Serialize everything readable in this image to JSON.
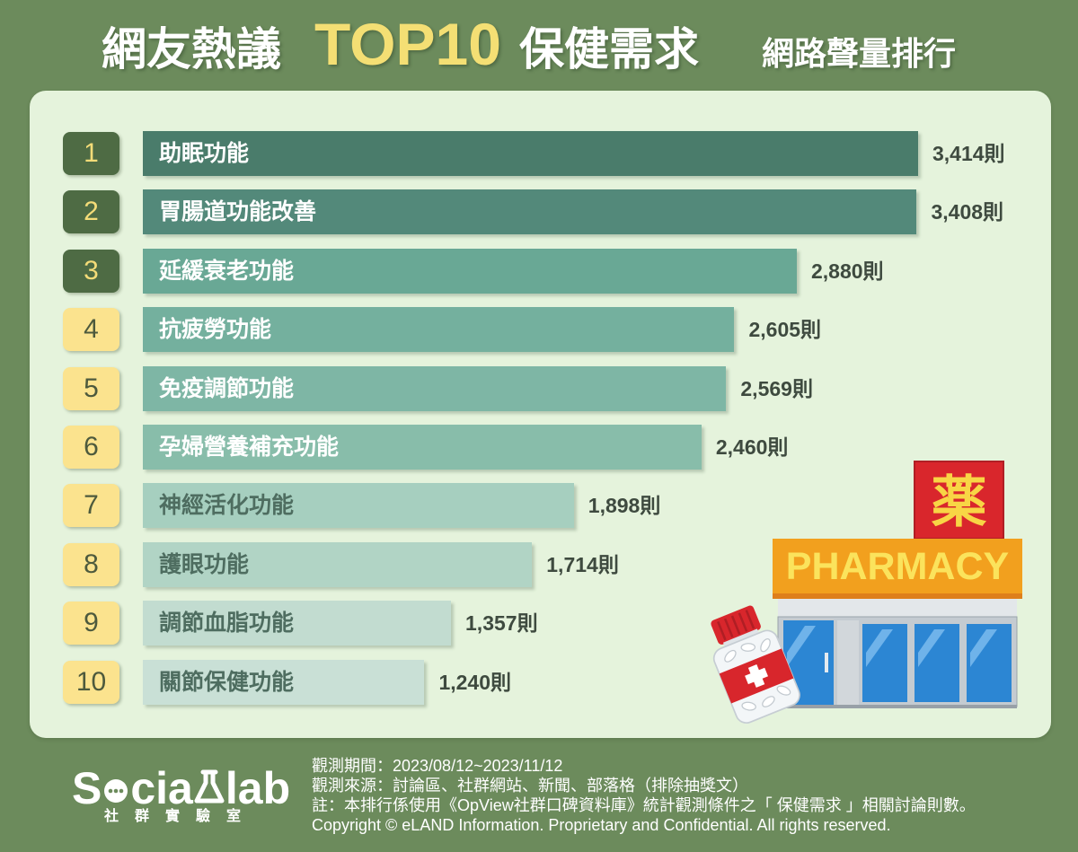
{
  "chart_data": {
    "type": "bar",
    "orientation": "horizontal",
    "title": [
      "網友熱議",
      "TOP10",
      "保健需求"
    ],
    "subtitle": "網路聲量排行",
    "ranks": [
      "1",
      "2",
      "3",
      "4",
      "5",
      "6",
      "7",
      "8",
      "9",
      "10"
    ],
    "categories": [
      "助眠功能",
      "胃腸道功能改善",
      "延緩衰老功能",
      "抗疲勞功能",
      "免疫調節功能",
      "孕婦營養補充功能",
      "神經活化功能",
      "護眼功能",
      "調節血脂功能",
      "關節保健功能"
    ],
    "values": [
      3414,
      3408,
      2880,
      2605,
      2569,
      2460,
      1898,
      1714,
      1357,
      1240
    ],
    "value_suffix": "則",
    "grid": false,
    "axes": false,
    "bar_colors": [
      "#4a7c6b",
      "#53897a",
      "#69a895",
      "#74b09e",
      "#7eb6a5",
      "#88bdaa",
      "#a6cfbf",
      "#b1d4c5",
      "#c2dcd0",
      "#c9e0d6"
    ],
    "label_colors": [
      "#ffffff",
      "#ffffff",
      "#ffffff",
      "#ffffff",
      "#ffffff",
      "#ffffff",
      "#4e6d60",
      "#4e6d60",
      "#4e6d60",
      "#4e6d60"
    ],
    "badge_fill": [
      "#4e6b44",
      "#4e6b44",
      "#4e6b44",
      "#fbe38e",
      "#fbe38e",
      "#fbe38e",
      "#fbe38e",
      "#fbe38e",
      "#fbe38e",
      "#fbe38e"
    ],
    "badge_text": [
      "#f4dc78",
      "#f4dc78",
      "#f4dc78",
      "#4d5a3d",
      "#4d5a3d",
      "#4d5a3d",
      "#4d5a3d",
      "#4d5a3d",
      "#4d5a3d",
      "#4d5a3d"
    ]
  },
  "illustration": {
    "sign_character": "薬",
    "banner_text": "PHARMACY"
  },
  "logo": {
    "letter_s": "S",
    "letters_cia": "cia",
    "letters_lab": "lab",
    "subtitle": "社群實驗室",
    "icons": [
      "speech-bubble-icon",
      "flask-icon"
    ]
  },
  "footer": {
    "period": "觀測期間：2023/08/12~2023/11/12",
    "source": "觀測來源：討論區、社群網站、新聞、部落格（排除抽獎文）",
    "note": "註：本排行係使用《OpView社群口碑資料庫》統計觀測條件之「 保健需求 」相關討論則數。",
    "copyright": "Copyright © eLAND Information. Proprietary and Confidential. All rights reserved."
  },
  "colors": {
    "page_background": "#6c8b5c",
    "panel_background": "#e5f3dc",
    "title_text": "#ffffff",
    "title_highlight": "#f4df74",
    "value_label_text": "#3e4a3f"
  }
}
